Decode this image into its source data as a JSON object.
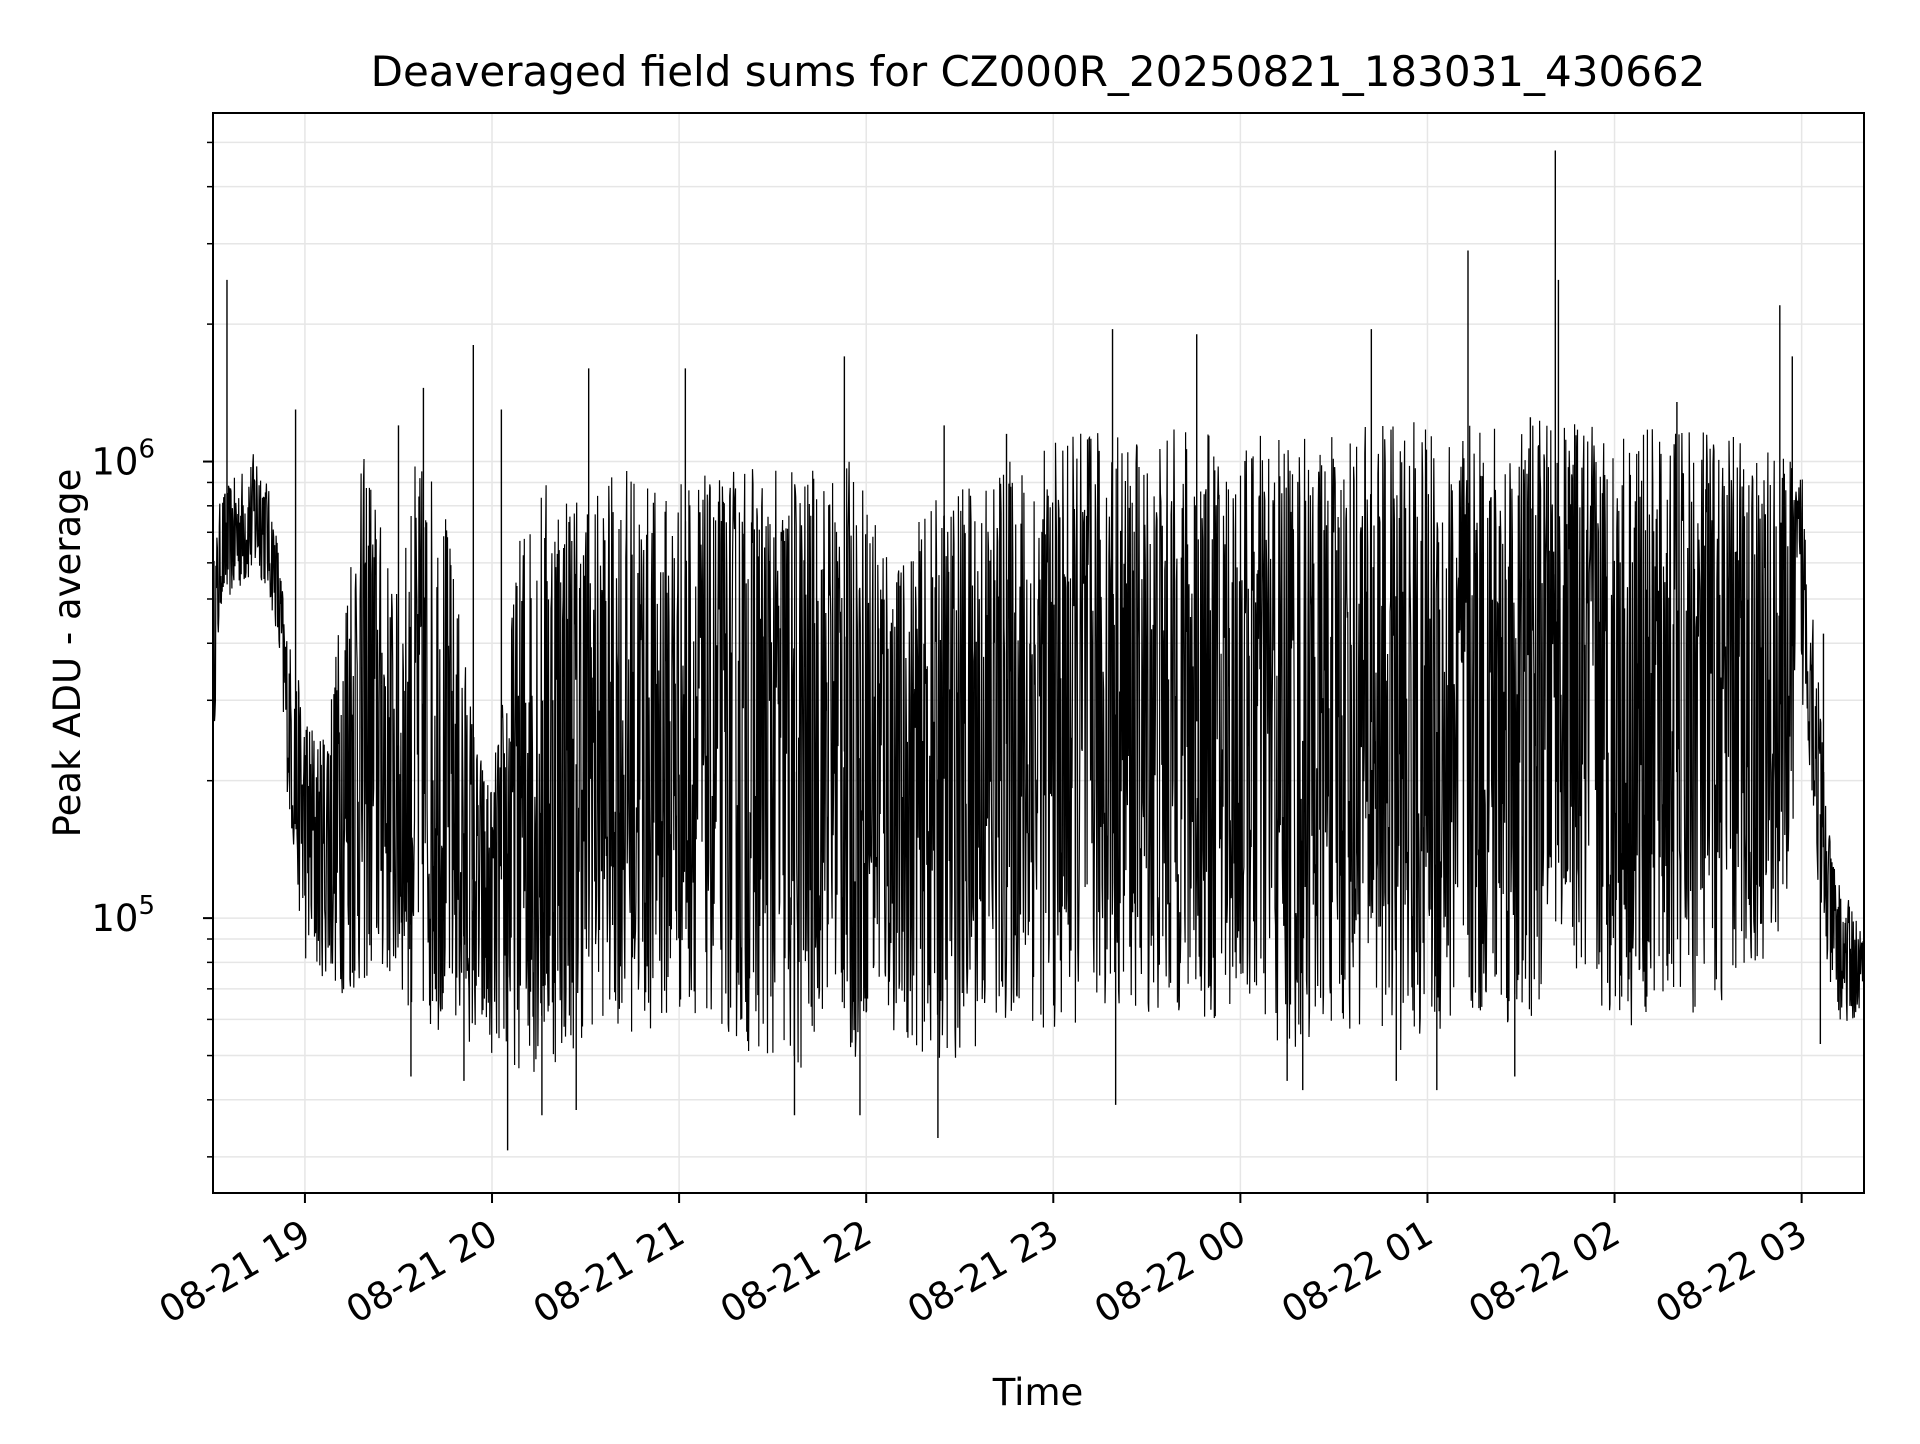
{
  "chart_data": {
    "type": "line",
    "title": "Deaveraged field sums for CZ000R_20250821_183031_430662",
    "xlabel": "Time",
    "ylabel": "Peak ADU - average",
    "y_scale": "log",
    "grid": true,
    "legend": "none",
    "xlim": [
      "2025-08-21 18:30:31",
      "2025-08-22 03:20:00"
    ],
    "ylim": [
      25000,
      5800000
    ],
    "x_ticks": [
      {
        "t": "2025-08-21 19:00",
        "label": "08-21 19"
      },
      {
        "t": "2025-08-21 20:00",
        "label": "08-21 20"
      },
      {
        "t": "2025-08-21 21:00",
        "label": "08-21 21"
      },
      {
        "t": "2025-08-21 22:00",
        "label": "08-21 22"
      },
      {
        "t": "2025-08-21 23:00",
        "label": "08-21 23"
      },
      {
        "t": "2025-08-22 00:00",
        "label": "08-22 00"
      },
      {
        "t": "2025-08-22 01:00",
        "label": "08-22 01"
      },
      {
        "t": "2025-08-22 02:00",
        "label": "08-22 02"
      },
      {
        "t": "2025-08-22 03:00",
        "label": "08-22 03"
      }
    ],
    "y_major_ticks": [
      {
        "value": 100000,
        "base": "10",
        "exp": "5"
      },
      {
        "value": 1000000,
        "base": "10",
        "exp": "6"
      }
    ],
    "line_color": "#000000",
    "grid_color": "#e6e6e6",
    "series": [
      {
        "x": [
          "2025-08-21 18:30:31",
          "2025-08-21 18:33",
          "2025-08-21 18:36",
          "2025-08-21 18:39",
          "2025-08-21 18:42",
          "2025-08-21 18:45",
          "2025-08-21 18:48",
          "2025-08-21 18:51",
          "2025-08-21 18:54",
          "2025-08-21 18:57",
          "2025-08-21 19:00",
          "2025-08-21 19:05",
          "2025-08-21 19:10",
          "2025-08-21 19:15",
          "2025-08-21 19:20",
          "2025-08-21 19:25",
          "2025-08-21 19:30",
          "2025-08-21 19:35",
          "2025-08-21 19:40",
          "2025-08-21 19:45",
          "2025-08-21 19:50",
          "2025-08-21 19:55",
          "2025-08-21 20:00",
          "2025-08-21 20:05",
          "2025-08-21 20:10",
          "2025-08-21 20:15",
          "2025-08-21 20:20",
          "2025-08-21 20:25",
          "2025-08-21 20:30",
          "2025-08-21 20:35",
          "2025-08-21 20:40",
          "2025-08-21 20:45",
          "2025-08-21 20:50",
          "2025-08-21 20:55",
          "2025-08-21 21:00",
          "2025-08-21 21:05",
          "2025-08-21 21:10",
          "2025-08-21 21:15",
          "2025-08-21 21:20",
          "2025-08-21 21:25",
          "2025-08-21 21:30",
          "2025-08-21 21:35",
          "2025-08-21 21:40",
          "2025-08-21 21:45",
          "2025-08-21 21:50",
          "2025-08-21 21:55",
          "2025-08-21 22:00",
          "2025-08-21 22:05",
          "2025-08-21 22:10",
          "2025-08-21 22:15",
          "2025-08-21 22:20",
          "2025-08-21 22:25",
          "2025-08-21 22:30",
          "2025-08-21 22:35",
          "2025-08-21 22:40",
          "2025-08-21 22:45",
          "2025-08-21 22:50",
          "2025-08-21 22:55",
          "2025-08-21 23:00",
          "2025-08-21 23:05",
          "2025-08-21 23:10",
          "2025-08-21 23:15",
          "2025-08-21 23:20",
          "2025-08-21 23:25",
          "2025-08-21 23:30",
          "2025-08-21 23:35",
          "2025-08-21 23:40",
          "2025-08-21 23:45",
          "2025-08-21 23:50",
          "2025-08-21 23:55",
          "2025-08-22 00:00",
          "2025-08-22 00:05",
          "2025-08-22 00:10",
          "2025-08-22 00:15",
          "2025-08-22 00:20",
          "2025-08-22 00:25",
          "2025-08-22 00:30",
          "2025-08-22 00:35",
          "2025-08-22 00:40",
          "2025-08-22 00:45",
          "2025-08-22 00:50",
          "2025-08-22 00:55",
          "2025-08-22 01:00",
          "2025-08-22 01:05",
          "2025-08-22 01:10",
          "2025-08-22 01:15",
          "2025-08-22 01:20",
          "2025-08-22 01:25",
          "2025-08-22 01:30",
          "2025-08-22 01:35",
          "2025-08-22 01:40",
          "2025-08-22 01:45",
          "2025-08-22 01:50",
          "2025-08-22 01:55",
          "2025-08-22 02:00",
          "2025-08-22 02:05",
          "2025-08-22 02:10",
          "2025-08-22 02:15",
          "2025-08-22 02:20",
          "2025-08-22 02:25",
          "2025-08-22 02:30",
          "2025-08-22 02:35",
          "2025-08-22 02:40",
          "2025-08-22 02:45",
          "2025-08-22 02:50",
          "2025-08-22 02:55",
          "2025-08-22 03:00",
          "2025-08-22 03:03",
          "2025-08-22 03:06",
          "2025-08-22 03:09",
          "2025-08-22 03:12",
          "2025-08-22 03:15",
          "2025-08-22 03:18",
          "2025-08-22 03:20"
        ],
        "low": [
          230000,
          480000,
          500000,
          520000,
          540000,
          560000,
          520000,
          420000,
          200000,
          120000,
          80000,
          75000,
          70000,
          65000,
          70000,
          72000,
          68000,
          60000,
          55000,
          58000,
          55000,
          52000,
          50000,
          48000,
          46000,
          45000,
          47000,
          50000,
          55000,
          60000,
          58000,
          56000,
          55000,
          58000,
          60000,
          62000,
          60000,
          55000,
          52000,
          50000,
          48000,
          45000,
          42000,
          60000,
          70000,
          45000,
          60000,
          58000,
          55000,
          52000,
          50000,
          48000,
          50000,
          52000,
          55000,
          58000,
          60000,
          58000,
          55000,
          58000,
          60000,
          62000,
          65000,
          62000,
          60000,
          58000,
          60000,
          62000,
          58000,
          60000,
          65000,
          60000,
          50000,
          48000,
          52000,
          55000,
          58000,
          55000,
          60000,
          58000,
          52000,
          50000,
          55000,
          52000,
          58000,
          55000,
          60000,
          58000,
          55000,
          60000,
          100000,
          90000,
          65000,
          60000,
          62000,
          58000,
          60000,
          62000,
          65000,
          60000,
          62000,
          65000,
          70000,
          75000,
          80000,
          100000,
          300000,
          200000,
          95000,
          70000,
          60000,
          58000,
          60000,
          62000
        ],
        "high": [
          600000,
          850000,
          900000,
          950000,
          1000000,
          1100000,
          900000,
          700000,
          450000,
          350000,
          300000,
          250000,
          400000,
          800000,
          1100000,
          700000,
          500000,
          1000000,
          1000000,
          800000,
          450000,
          250000,
          200000,
          400000,
          800000,
          900000,
          1000000,
          950000,
          850000,
          900000,
          950000,
          1000000,
          900000,
          850000,
          950000,
          1000000,
          900000,
          950000,
          1000000,
          1000000,
          950000,
          1000000,
          1000000,
          950000,
          1000000,
          1000000,
          900000,
          850000,
          600000,
          700000,
          800000,
          850000,
          900000,
          950000,
          1000000,
          1000000,
          1050000,
          1100000,
          1100000,
          1150000,
          1200000,
          1200000,
          1200000,
          1150000,
          1100000,
          1150000,
          1200000,
          1200000,
          1150000,
          1100000,
          1100000,
          1150000,
          1200000,
          1200000,
          1150000,
          1100000,
          1150000,
          1200000,
          1200000,
          1250000,
          1200000,
          1250000,
          1200000,
          1250000,
          1200000,
          1200000,
          1250000,
          1300000,
          1200000,
          1250000,
          1200000,
          1200000,
          1250000,
          1250000,
          1200000,
          1250000,
          1200000,
          1150000,
          1200000,
          1250000,
          1200000,
          1150000,
          1200000,
          1100000,
          1100000,
          1000000,
          1000000,
          650000,
          300000,
          150000,
          120000,
          110000,
          100000,
          90000
        ],
        "spikes": [
          {
            "x": "2025-08-21 18:35",
            "y": 2500000
          },
          {
            "x": "2025-08-21 18:57",
            "y": 1300000
          },
          {
            "x": "2025-08-21 19:30",
            "y": 1200000
          },
          {
            "x": "2025-08-21 19:38",
            "y": 1450000
          },
          {
            "x": "2025-08-21 19:54",
            "y": 1800000
          },
          {
            "x": "2025-08-21 20:03",
            "y": 1300000
          },
          {
            "x": "2025-08-21 20:31",
            "y": 1600000
          },
          {
            "x": "2025-08-21 21:02",
            "y": 1600000
          },
          {
            "x": "2025-08-21 21:53",
            "y": 1700000
          },
          {
            "x": "2025-08-21 22:25",
            "y": 1200000
          },
          {
            "x": "2025-08-21 22:45",
            "y": 1150000
          },
          {
            "x": "2025-08-21 23:19",
            "y": 1950000
          },
          {
            "x": "2025-08-21 23:46",
            "y": 1900000
          },
          {
            "x": "2025-08-22 00:42",
            "y": 1950000
          },
          {
            "x": "2025-08-22 01:13",
            "y": 2900000
          },
          {
            "x": "2025-08-22 01:33",
            "y": 1250000
          },
          {
            "x": "2025-08-22 01:41",
            "y": 4800000
          },
          {
            "x": "2025-08-22 01:42",
            "y": 2500000
          },
          {
            "x": "2025-08-22 02:20",
            "y": 1350000
          },
          {
            "x": "2025-08-22 02:53",
            "y": 2200000
          },
          {
            "x": "2025-08-22 02:57",
            "y": 1700000
          },
          {
            "x": "2025-08-22 03:07",
            "y": 420000
          }
        ],
        "dips": [
          {
            "x": "2025-08-21 19:34",
            "y": 45000
          },
          {
            "x": "2025-08-21 19:51",
            "y": 44000
          },
          {
            "x": "2025-08-21 20:05",
            "y": 31000
          },
          {
            "x": "2025-08-21 20:16",
            "y": 37000
          },
          {
            "x": "2025-08-21 20:27",
            "y": 38000
          },
          {
            "x": "2025-08-21 21:37",
            "y": 37000
          },
          {
            "x": "2025-08-21 21:58",
            "y": 37000
          },
          {
            "x": "2025-08-21 22:23",
            "y": 33000
          },
          {
            "x": "2025-08-21 23:20",
            "y": 39000
          },
          {
            "x": "2025-08-22 00:15",
            "y": 44000
          },
          {
            "x": "2025-08-22 00:20",
            "y": 42000
          },
          {
            "x": "2025-08-22 00:50",
            "y": 44000
          },
          {
            "x": "2025-08-22 01:03",
            "y": 42000
          },
          {
            "x": "2025-08-22 01:28",
            "y": 45000
          },
          {
            "x": "2025-08-22 03:06",
            "y": 53000
          }
        ]
      }
    ]
  }
}
